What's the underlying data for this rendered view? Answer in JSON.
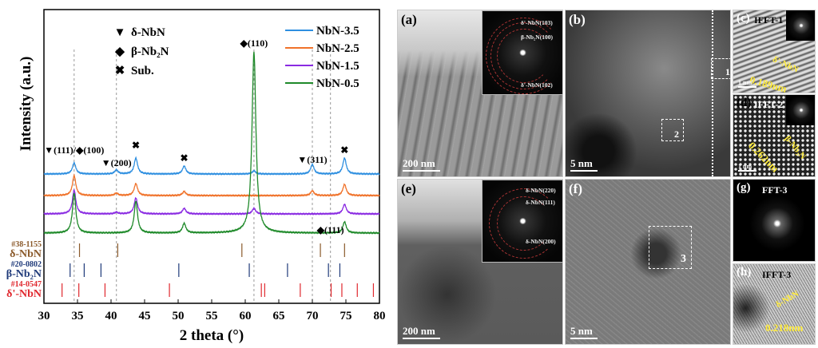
{
  "chart_data": {
    "type": "line",
    "xlabel": "2 theta (°)",
    "ylabel": "Intensity (a.u.)",
    "xlim": [
      30,
      80
    ],
    "xticks": [
      30,
      35,
      40,
      45,
      50,
      55,
      60,
      65,
      70,
      75,
      80
    ],
    "grid": false,
    "legend_placement": "top-right",
    "series": [
      {
        "name": "NbN-3.5",
        "color": "#2e8fe0",
        "offset": 74,
        "peaks": [
          [
            34.5,
            14
          ],
          [
            40.8,
            5
          ],
          [
            43.7,
            20
          ],
          [
            50.9,
            10
          ],
          [
            61.3,
            4
          ],
          [
            70.0,
            12
          ],
          [
            74.8,
            20
          ]
        ]
      },
      {
        "name": "NbN-2.5",
        "color": "#f0722a",
        "offset": 47,
        "peaks": [
          [
            34.5,
            25
          ],
          [
            40.8,
            3
          ],
          [
            43.7,
            15
          ],
          [
            50.9,
            5
          ],
          [
            70.0,
            6
          ],
          [
            74.8,
            14
          ]
        ]
      },
      {
        "name": "NbN-1.5",
        "color": "#8a2be2",
        "offset": 24,
        "peaks": [
          [
            34.5,
            30
          ],
          [
            40.8,
            2
          ],
          [
            43.7,
            20
          ],
          [
            50.9,
            7
          ],
          [
            61.3,
            7
          ],
          [
            74.8,
            12
          ]
        ]
      },
      {
        "name": "NbN-0.5",
        "color": "#1f8a2a",
        "offset": 0,
        "peaks": [
          [
            34.5,
            50
          ],
          [
            43.7,
            40
          ],
          [
            50.9,
            12
          ],
          [
            61.3,
            227
          ],
          [
            74.8,
            14
          ]
        ]
      }
    ],
    "dashed_lines": [
      34.5,
      40.8,
      61.3,
      70.0,
      72.7
    ],
    "phase_legend": [
      {
        "symbol": "▼",
        "label": "δ-NbN"
      },
      {
        "symbol": "◆",
        "label": "β-Nb₂N"
      },
      {
        "symbol": "✖",
        "label": "Sub."
      }
    ],
    "annotations": [
      {
        "x": 34.5,
        "text": "▼(111)/◆(100)"
      },
      {
        "x": 40.8,
        "text": "▼(200)"
      },
      {
        "x": 43.7,
        "text": "✖"
      },
      {
        "x": 50.9,
        "text": "✖"
      },
      {
        "x": 61.3,
        "text": "◆(110)"
      },
      {
        "x": 70.0,
        "text": "▼(311)"
      },
      {
        "x": 74.8,
        "text": "✖"
      },
      {
        "x": 72.7,
        "text": "◆(111)"
      }
    ],
    "references": [
      {
        "card": "#38-1155",
        "phase": "δ-NbN",
        "color": "#8b5a2b",
        "positions": [
          35.3,
          41.0,
          59.5,
          71.2,
          74.8
        ]
      },
      {
        "card": "#20-0802",
        "phase": "β-Nb₂N",
        "color": "#1f3a7a",
        "positions": [
          33.9,
          36.0,
          38.5,
          50.1,
          60.6,
          66.3,
          72.4,
          74.1
        ]
      },
      {
        "card": "#14-0547",
        "phase": "δ'-NbN",
        "color": "#e0282e",
        "positions": [
          32.7,
          35.2,
          39.1,
          48.7,
          62.4,
          62.9,
          68.2,
          72.8,
          74.4,
          76.7,
          79.1
        ]
      }
    ]
  },
  "panels": {
    "a": {
      "label": "(a)",
      "scale": "200 nm",
      "saed": [
        "δ'-NbN(103)",
        "β-Nb₂N(100)",
        "δ'-NbN(102)"
      ]
    },
    "b": {
      "label": "(b)",
      "scale": "5 nm",
      "box1": "1",
      "box2": "2"
    },
    "c": {
      "label": "(c)",
      "title": "IFFT-1",
      "phase": "δ'-NbN",
      "d": "0.189nm",
      "scale": "1 nm"
    },
    "d": {
      "label": "(d)",
      "title": "IFFT-2",
      "phase": "β-Nb₂N",
      "d": "0.262nm",
      "scale": "1 nm"
    },
    "e": {
      "label": "(e)",
      "scale": "200 nm",
      "saed": [
        "δ-NbN(220)",
        "δ-NbN(111)",
        "δ-NbN(200)"
      ]
    },
    "f": {
      "label": "(f)",
      "scale": "5 nm",
      "box": "3"
    },
    "g": {
      "label": "(g)",
      "title": "FFT-3"
    },
    "h": {
      "label": "(h)",
      "title": "IFFT-3",
      "phase": "δ-NbN",
      "d": "0.218nm"
    }
  }
}
